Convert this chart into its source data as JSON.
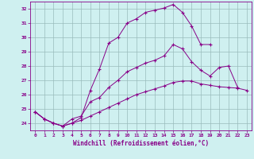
{
  "xlabel": "Windchill (Refroidissement éolien,°C)",
  "xlim": [
    -0.5,
    23.5
  ],
  "ylim": [
    23.5,
    32.5
  ],
  "xticks": [
    0,
    1,
    2,
    3,
    4,
    5,
    6,
    7,
    8,
    9,
    10,
    11,
    12,
    13,
    14,
    15,
    16,
    17,
    18,
    19,
    20,
    21,
    22,
    23
  ],
  "yticks": [
    24,
    25,
    26,
    27,
    28,
    29,
    30,
    31,
    32
  ],
  "background_color": "#cff0f0",
  "line_color": "#880088",
  "grid_color": "#99bbbb",
  "lines": [
    {
      "x": [
        0,
        1,
        2,
        3,
        4,
        5,
        6,
        7,
        8,
        9,
        10,
        11,
        12,
        13,
        14,
        15,
        16,
        17,
        18,
        19
      ],
      "y": [
        24.8,
        24.3,
        24.0,
        23.8,
        24.0,
        24.4,
        26.3,
        27.8,
        29.6,
        30.0,
        31.0,
        31.3,
        31.75,
        31.9,
        32.05,
        32.3,
        31.75,
        30.8,
        29.5,
        29.5
      ]
    },
    {
      "x": [
        0,
        1,
        2,
        3,
        4,
        5,
        6,
        7,
        8,
        9,
        10,
        11,
        12,
        13,
        14,
        15,
        16,
        17,
        18,
        19,
        20,
        21,
        22
      ],
      "y": [
        24.8,
        24.3,
        24.0,
        23.8,
        24.3,
        24.5,
        25.5,
        25.8,
        26.5,
        27.0,
        27.6,
        27.9,
        28.2,
        28.4,
        28.7,
        29.5,
        29.2,
        28.3,
        27.7,
        27.3,
        27.9,
        28.0,
        26.5
      ]
    },
    {
      "x": [
        0,
        1,
        2,
        3,
        4,
        5,
        6,
        7,
        8,
        9,
        10,
        11,
        12,
        13,
        14,
        15,
        16,
        17,
        18,
        19,
        20,
        21,
        22,
        23
      ],
      "y": [
        24.8,
        24.3,
        24.0,
        23.8,
        24.0,
        24.2,
        24.5,
        24.8,
        25.1,
        25.4,
        25.7,
        26.0,
        26.2,
        26.4,
        26.6,
        26.85,
        26.95,
        26.95,
        26.75,
        26.65,
        26.55,
        26.5,
        26.45,
        26.3
      ]
    }
  ]
}
